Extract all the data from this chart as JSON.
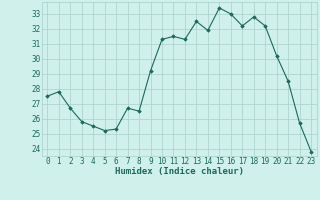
{
  "x": [
    0,
    1,
    2,
    3,
    4,
    5,
    6,
    7,
    8,
    9,
    10,
    11,
    12,
    13,
    14,
    15,
    16,
    17,
    18,
    19,
    20,
    21,
    22,
    23
  ],
  "y": [
    27.5,
    27.8,
    26.7,
    25.8,
    25.5,
    25.2,
    25.3,
    26.7,
    26.5,
    29.2,
    31.3,
    31.5,
    31.3,
    32.5,
    31.9,
    33.4,
    33.0,
    32.2,
    32.8,
    32.2,
    30.2,
    28.5,
    25.7,
    23.8
  ],
  "xlim": [
    -0.5,
    23.5
  ],
  "ylim": [
    23.5,
    33.8
  ],
  "yticks": [
    24,
    25,
    26,
    27,
    28,
    29,
    30,
    31,
    32,
    33
  ],
  "xticks": [
    0,
    1,
    2,
    3,
    4,
    5,
    6,
    7,
    8,
    9,
    10,
    11,
    12,
    13,
    14,
    15,
    16,
    17,
    18,
    19,
    20,
    21,
    22,
    23
  ],
  "xlabel": "Humidex (Indice chaleur)",
  "line_color": "#1a6b5a",
  "marker": "D",
  "marker_size": 1.8,
  "bg_color": "#cff0eb",
  "grid_color": "#a8cfc8",
  "xlabel_fontsize": 6.5,
  "tick_fontsize": 5.5,
  "tick_color": "#1a6b5a",
  "linewidth": 0.8
}
